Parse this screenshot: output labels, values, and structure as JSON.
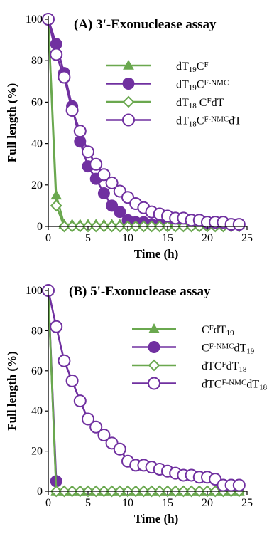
{
  "chart_data": [
    {
      "type": "line",
      "title": "(A) 3'-Exonuclease assay",
      "xlabel": "Time (h)",
      "ylabel": "Full length  (%)",
      "xlim": [
        0,
        25
      ],
      "ylim": [
        0,
        100
      ],
      "xticks": [
        "0",
        "5",
        "10",
        "15",
        "20",
        "25"
      ],
      "yticks": [
        "0",
        "20",
        "40",
        "60",
        "80",
        "100"
      ],
      "grid": false,
      "legend_position": "right",
      "series": [
        {
          "name": "dT19CF",
          "name_parts": [
            [
              "dT",
              ""
            ],
            [
              "19",
              "sub"
            ],
            [
              "C",
              ""
            ],
            [
              "F",
              "sup"
            ]
          ],
          "color": "#6aa84f",
          "marker": "triangle-filled",
          "x": [
            0,
            1,
            2,
            3,
            4,
            5,
            6,
            7,
            8,
            9,
            10,
            11,
            12,
            13,
            14,
            15,
            16,
            17,
            18,
            19,
            20,
            21,
            22,
            23,
            24
          ],
          "y": [
            100,
            15,
            1,
            1,
            1,
            1,
            1,
            1,
            1,
            1,
            1,
            1,
            1,
            1,
            1,
            1,
            1,
            1,
            1,
            1,
            1,
            1,
            1,
            1,
            1
          ]
        },
        {
          "name": "dT19CF-NMC",
          "name_parts": [
            [
              "dT",
              ""
            ],
            [
              "19",
              "sub"
            ],
            [
              "C",
              ""
            ],
            [
              "F-NMC",
              "sup"
            ]
          ],
          "color": "#7030a0",
          "marker": "circle-filled",
          "x": [
            0,
            1,
            2,
            3,
            4,
            5,
            6,
            7,
            8,
            9,
            10,
            11,
            12,
            13,
            14,
            15,
            16,
            17,
            18,
            19,
            20,
            21,
            22,
            23,
            24
          ],
          "y": [
            100,
            88,
            74,
            58,
            41,
            29,
            23,
            16,
            10,
            7,
            3,
            2,
            2,
            1,
            1,
            1,
            1,
            1,
            1,
            1,
            1,
            1,
            1,
            1,
            1
          ]
        },
        {
          "name": "dT18 CFdT",
          "name_parts": [
            [
              "dT",
              ""
            ],
            [
              "18",
              "sub"
            ],
            [
              " C",
              ""
            ],
            [
              "F",
              "sup"
            ],
            [
              "dT",
              ""
            ]
          ],
          "color": "#6aa84f",
          "marker": "diamond-open",
          "x": [
            0,
            1,
            2,
            3,
            4,
            5,
            6,
            7,
            8,
            9,
            10,
            11,
            12,
            13,
            14,
            15,
            16,
            17,
            18,
            19,
            20,
            21,
            22,
            23,
            24
          ],
          "y": [
            100,
            10,
            0,
            0,
            0,
            0,
            0,
            0,
            0,
            0,
            0,
            0,
            0,
            0,
            0,
            0,
            0,
            0,
            0,
            0,
            0,
            0,
            0,
            0,
            0
          ]
        },
        {
          "name": "dT18CF-NMCdT",
          "name_parts": [
            [
              "dT",
              ""
            ],
            [
              "18",
              "sub"
            ],
            [
              "C",
              ""
            ],
            [
              "F-NMC",
              "sup"
            ],
            [
              "dT",
              ""
            ]
          ],
          "color": "#7030a0",
          "marker": "circle-open",
          "x": [
            0,
            1,
            2,
            3,
            4,
            5,
            6,
            7,
            8,
            9,
            10,
            11,
            12,
            13,
            14,
            15,
            16,
            17,
            18,
            19,
            20,
            21,
            22,
            23,
            24
          ],
          "y": [
            100,
            83,
            72,
            56,
            46,
            36,
            30,
            25,
            21,
            17,
            14,
            11,
            9,
            7,
            6,
            5,
            4,
            4,
            3,
            3,
            2,
            2,
            2,
            1,
            1
          ]
        }
      ]
    },
    {
      "type": "line",
      "title": "(B) 5'-Exonuclease assay",
      "xlabel": "Time (h)",
      "ylabel": "Full length  (%)",
      "xlim": [
        0,
        25
      ],
      "ylim": [
        0,
        100
      ],
      "xticks": [
        "0",
        "5",
        "10",
        "15",
        "20",
        "25"
      ],
      "yticks": [
        "0",
        "20",
        "40",
        "60",
        "80",
        "100"
      ],
      "grid": false,
      "legend_position": "right",
      "series": [
        {
          "name": "CFdT19",
          "name_parts": [
            [
              "C",
              ""
            ],
            [
              "F",
              "sup"
            ],
            [
              "dT",
              ""
            ],
            [
              "19",
              "sub"
            ]
          ],
          "color": "#6aa84f",
          "marker": "triangle-filled",
          "x": [
            0,
            1,
            2,
            3,
            4,
            5,
            6,
            7,
            8,
            9,
            10,
            11,
            12,
            13,
            14,
            15,
            16,
            17,
            18,
            19,
            20,
            21,
            22,
            23,
            24
          ],
          "y": [
            100,
            0,
            0,
            0,
            0,
            0,
            0,
            0,
            0,
            0,
            0,
            0,
            0,
            0,
            0,
            0,
            0,
            0,
            0,
            0,
            0,
            0,
            0,
            0,
            0
          ]
        },
        {
          "name": "CF-NMCdT19",
          "name_parts": [
            [
              "C",
              ""
            ],
            [
              "F-NMC",
              "sup"
            ],
            [
              "dT",
              ""
            ],
            [
              "19",
              "sub"
            ]
          ],
          "color": "#7030a0",
          "marker": "circle-filled",
          "x": [
            0,
            1
          ],
          "y": [
            100,
            5
          ]
        },
        {
          "name": "dTCFdT18",
          "name_parts": [
            [
              "dTC",
              ""
            ],
            [
              "F",
              "sup"
            ],
            [
              "dT",
              ""
            ],
            [
              "18",
              "sub"
            ]
          ],
          "color": "#6aa84f",
          "marker": "diamond-open",
          "x": [
            0,
            1,
            2,
            3,
            4,
            5,
            6,
            7,
            8,
            9,
            10,
            11,
            12,
            13,
            14,
            15,
            16,
            17,
            18,
            19,
            20,
            21,
            22,
            23,
            24
          ],
          "y": [
            100,
            0,
            0,
            0,
            0,
            0,
            0,
            0,
            0,
            0,
            0,
            0,
            0,
            0,
            0,
            0,
            0,
            0,
            0,
            0,
            0,
            0,
            0,
            0,
            0
          ]
        },
        {
          "name": "dTCF-NMCdT18",
          "name_parts": [
            [
              "dTC",
              ""
            ],
            [
              "F-NMC",
              "sup"
            ],
            [
              "dT",
              ""
            ],
            [
              "18",
              "sub"
            ]
          ],
          "color": "#7030a0",
          "marker": "circle-open",
          "x": [
            0,
            1,
            2,
            3,
            4,
            5,
            6,
            7,
            8,
            9,
            10,
            11,
            12,
            13,
            14,
            15,
            16,
            17,
            18,
            19,
            20,
            21,
            22,
            23,
            24
          ],
          "y": [
            100,
            82,
            65,
            55,
            45,
            36,
            32,
            28,
            24,
            21,
            15,
            13,
            13,
            12,
            11,
            10,
            9,
            8,
            8,
            7,
            7,
            6,
            3,
            3,
            3
          ]
        }
      ]
    }
  ]
}
